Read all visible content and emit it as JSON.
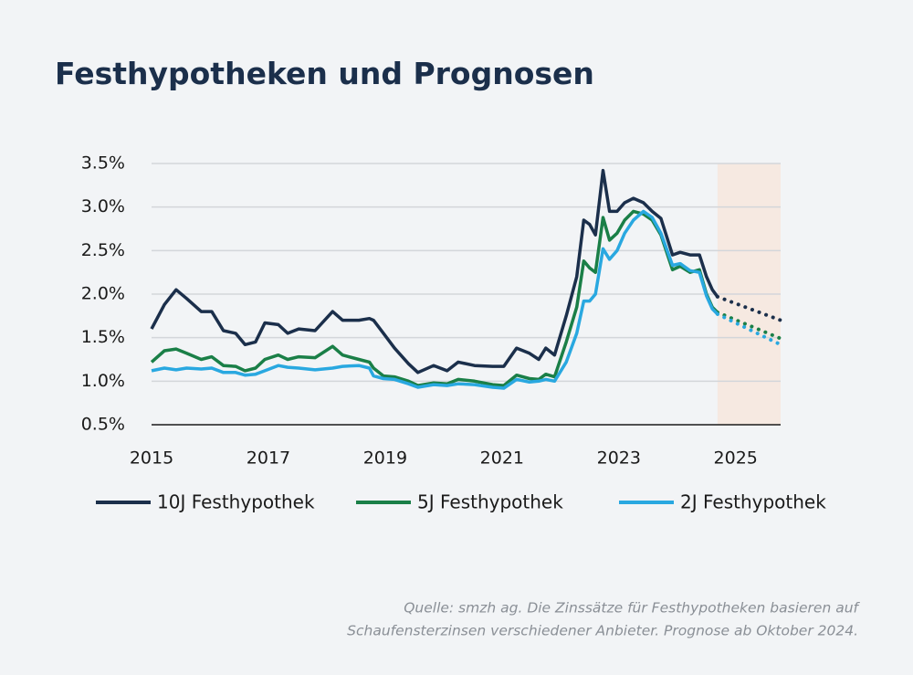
{
  "chart_data": {
    "type": "line",
    "title": "Festhypotheken und Prognosen",
    "source": [
      "Quelle: smzh ag. Die Zinssätze für Festhypotheken basieren auf",
      "Schaufensterzinsen verschiedener Anbieter. Prognose ab Oktober 2024."
    ],
    "xlim": [
      2015,
      2025.77
    ],
    "xticks": [
      2015,
      2017,
      2019,
      2021,
      2023,
      2025
    ],
    "ylim": [
      0.5,
      3.5
    ],
    "yticks": [
      {
        "value": 0.5,
        "label": "0.5%"
      },
      {
        "value": 1.0,
        "label": "1.0%"
      },
      {
        "value": 1.5,
        "label": "1.5%"
      },
      {
        "value": 2.0,
        "label": "2.0%"
      },
      {
        "value": 2.5,
        "label": "2.5%"
      },
      {
        "value": 3.0,
        "label": "3.0%"
      },
      {
        "value": 3.5,
        "label": "3.5%"
      }
    ],
    "grid": true,
    "forecast_color": "#f6e9e1",
    "x": [
      2015.0,
      2015.22,
      2015.42,
      2015.6,
      2015.85,
      2016.03,
      2016.23,
      2016.44,
      2016.6,
      2016.78,
      2016.94,
      2017.17,
      2017.33,
      2017.52,
      2017.8,
      2018.1,
      2018.27,
      2018.55,
      2018.73,
      2018.8,
      2018.97,
      2019.16,
      2019.4,
      2019.56,
      2019.83,
      2020.06,
      2020.25,
      2020.53,
      2020.84,
      2021.03,
      2021.25,
      2021.47,
      2021.63,
      2021.75,
      2021.9,
      2022.1,
      2022.28,
      2022.4,
      2022.5,
      2022.6,
      2022.73,
      2022.84,
      2022.97,
      2023.1,
      2023.25,
      2023.42,
      2023.57,
      2023.72,
      2023.92,
      2024.05,
      2024.22,
      2024.38,
      2024.5,
      2024.6,
      2024.69
    ],
    "forecast_x": [
      2024.69,
      2025.77
    ],
    "series": [
      {
        "name": "10J Festhypothek",
        "color": "#1b2f4b",
        "values": [
          1.6,
          1.88,
          2.05,
          1.95,
          1.8,
          1.8,
          1.58,
          1.55,
          1.42,
          1.45,
          1.67,
          1.65,
          1.55,
          1.6,
          1.58,
          1.8,
          1.7,
          1.7,
          1.72,
          1.7,
          1.55,
          1.38,
          1.2,
          1.1,
          1.18,
          1.12,
          1.22,
          1.18,
          1.17,
          1.17,
          1.38,
          1.32,
          1.25,
          1.38,
          1.3,
          1.75,
          2.2,
          2.85,
          2.8,
          2.68,
          3.42,
          2.95,
          2.95,
          3.05,
          3.1,
          3.05,
          2.95,
          2.87,
          2.45,
          2.48,
          2.45,
          2.45,
          2.2,
          2.05,
          1.97
        ],
        "forecast": [
          1.97,
          1.7
        ]
      },
      {
        "name": "5J Festhypothek",
        "color": "#1a7f47",
        "values": [
          1.22,
          1.35,
          1.37,
          1.32,
          1.25,
          1.28,
          1.18,
          1.17,
          1.12,
          1.15,
          1.25,
          1.3,
          1.25,
          1.28,
          1.27,
          1.4,
          1.3,
          1.25,
          1.22,
          1.15,
          1.06,
          1.05,
          1.0,
          0.95,
          0.98,
          0.97,
          1.02,
          1.0,
          0.96,
          0.95,
          1.07,
          1.03,
          1.02,
          1.08,
          1.05,
          1.45,
          1.85,
          2.38,
          2.3,
          2.25,
          2.88,
          2.62,
          2.7,
          2.85,
          2.95,
          2.92,
          2.85,
          2.68,
          2.28,
          2.32,
          2.25,
          2.28,
          2.0,
          1.85,
          1.79
        ],
        "forecast": [
          1.79,
          1.49
        ]
      },
      {
        "name": "2J Festhypothek",
        "color": "#29a8e0",
        "values": [
          1.12,
          1.15,
          1.13,
          1.15,
          1.14,
          1.15,
          1.1,
          1.1,
          1.07,
          1.08,
          1.12,
          1.18,
          1.16,
          1.15,
          1.13,
          1.15,
          1.17,
          1.18,
          1.15,
          1.06,
          1.03,
          1.02,
          0.97,
          0.93,
          0.96,
          0.95,
          0.97,
          0.96,
          0.93,
          0.92,
          1.02,
          0.99,
          1.0,
          1.02,
          1.0,
          1.22,
          1.55,
          1.92,
          1.92,
          2.0,
          2.52,
          2.4,
          2.5,
          2.7,
          2.85,
          2.95,
          2.88,
          2.7,
          2.33,
          2.35,
          2.27,
          2.25,
          1.98,
          1.83,
          1.77
        ],
        "forecast": [
          1.77,
          1.42
        ]
      }
    ]
  }
}
